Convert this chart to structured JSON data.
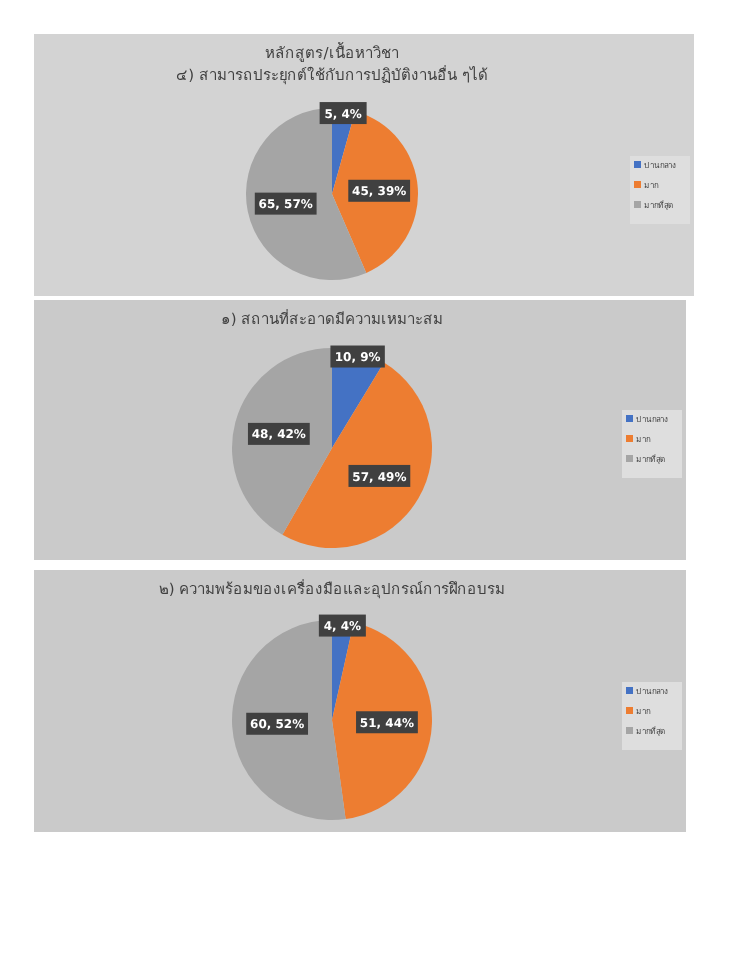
{
  "chart_data": [
    {
      "type": "pie",
      "title": "หลักสูตร/เนื้อหาวิชา",
      "subtitle": "๔) สามารถประยุกต์ใช้กับการปฏิบัติงานอื่น ๆได้",
      "categories": [
        "ปานกลาง",
        "มาก",
        "มากที่สุด"
      ],
      "values": [
        5,
        45,
        65
      ],
      "value_labels": [
        "5, 4%",
        "45, 39%",
        "65, 57%"
      ],
      "colors": [
        "#4472c4",
        "#ed7d31",
        "#a5a5a5"
      ],
      "legend": "right"
    },
    {
      "type": "pie",
      "title": "๑) สถานที่สะอาดมีความเหมาะสม",
      "categories": [
        "ปานกลาง",
        "มาก",
        "มากที่สุด"
      ],
      "values": [
        10,
        57,
        48
      ],
      "value_labels": [
        "10, 9%",
        "57, 49%",
        "48, 42%"
      ],
      "colors": [
        "#4472c4",
        "#ed7d31",
        "#a5a5a5"
      ],
      "legend": "right"
    },
    {
      "type": "pie",
      "title": "๒) ความพร้อมของเครื่องมือและอุปกรณ์การฝึกอบรม",
      "categories": [
        "ปานกลาง",
        "มาก",
        "มากที่สุด"
      ],
      "values": [
        4,
        51,
        60
      ],
      "value_labels": [
        "4, 4%",
        "51, 44%",
        "60, 52%"
      ],
      "colors": [
        "#4472c4",
        "#ed7d31",
        "#a5a5a5"
      ],
      "legend": "right"
    }
  ]
}
